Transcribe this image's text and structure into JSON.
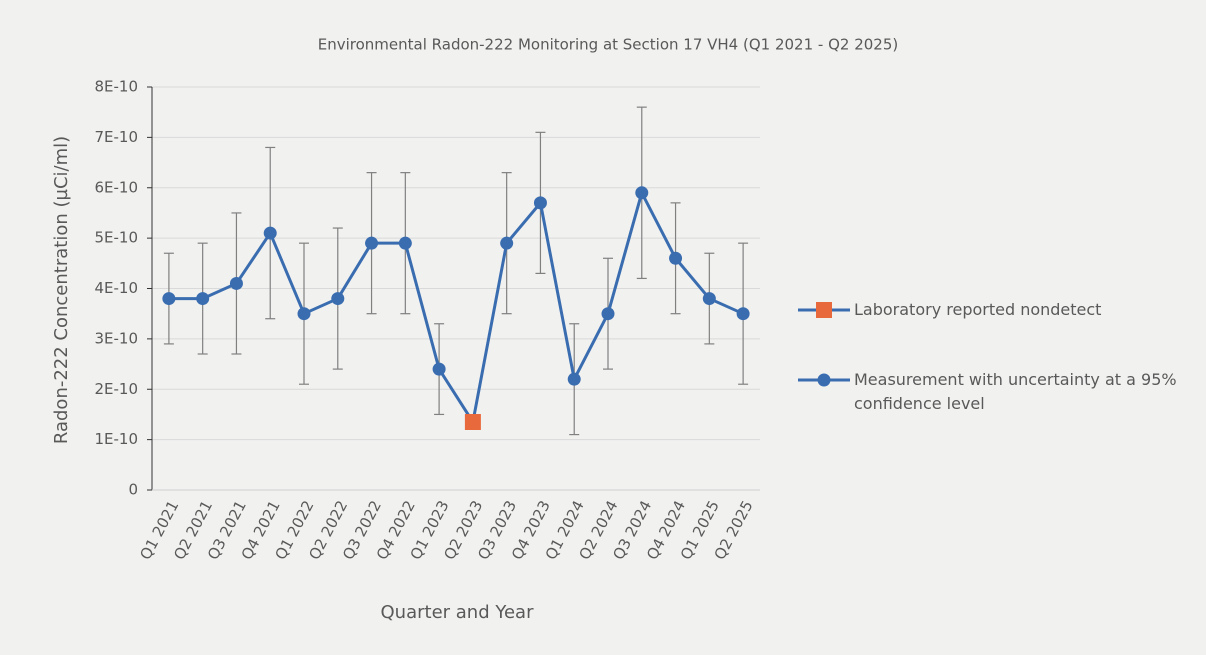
{
  "chart_data": {
    "type": "line",
    "title": "Environmental Radon-222 Monitoring at Section 17 VH4 (Q1 2021 - Q2 2025)",
    "x_label": "Quarter and Year",
    "y_label": "Radon-222 Concentration (µCi/ml)",
    "categories": [
      "Q1 2021",
      "Q2 2021",
      "Q3 2021",
      "Q4 2021",
      "Q1 2022",
      "Q2 2022",
      "Q3 2022",
      "Q4 2022",
      "Q1 2023",
      "Q2 2023",
      "Q3 2023",
      "Q4 2023",
      "Q1 2024",
      "Q2 2024",
      "Q3 2024",
      "Q4 2024",
      "Q1 2025",
      "Q2 2025"
    ],
    "ylim": [
      0,
      8e-10
    ],
    "yticks": [
      0,
      {
        "value": 1e-10,
        "label": "1E-10"
      },
      {
        "value": 2e-10,
        "label": "2E-10"
      },
      {
        "value": 3e-10,
        "label": "3E-10"
      },
      {
        "value": 4e-10,
        "label": "4E-10"
      },
      {
        "value": 5e-10,
        "label": "5E-10"
      },
      {
        "value": 6e-10,
        "label": "6E-10"
      },
      {
        "value": 7e-10,
        "label": "7E-10"
      },
      {
        "value": 8e-10,
        "label": "8E-10"
      }
    ],
    "grid": true,
    "legend_position": "right",
    "series": [
      {
        "name": "Laboratory reported nondetect",
        "color": "#e8693c",
        "marker": "square",
        "values": [
          null,
          null,
          null,
          null,
          null,
          null,
          null,
          null,
          null,
          1.35e-10,
          null,
          null,
          null,
          null,
          null,
          null,
          null,
          null
        ]
      },
      {
        "name": "Measurement with uncertainty at a 95% confidence level",
        "color": "#3a6db0",
        "marker": "circle",
        "values": [
          3.8e-10,
          3.8e-10,
          4.1e-10,
          5.1e-10,
          3.5e-10,
          3.8e-10,
          4.9e-10,
          4.9e-10,
          2.4e-10,
          1.35e-10,
          4.9e-10,
          5.7e-10,
          2.2e-10,
          3.5e-10,
          5.9e-10,
          4.6e-10,
          3.8e-10,
          3.5e-10
        ],
        "errors": [
          9e-11,
          1.1e-10,
          1.4e-10,
          1.7e-10,
          1.4e-10,
          1.4e-10,
          1.4e-10,
          1.4e-10,
          9e-11,
          null,
          1.4e-10,
          1.4e-10,
          1.1e-10,
          1.1e-10,
          1.7e-10,
          1.1e-10,
          9e-11,
          1.4e-10
        ]
      }
    ]
  }
}
